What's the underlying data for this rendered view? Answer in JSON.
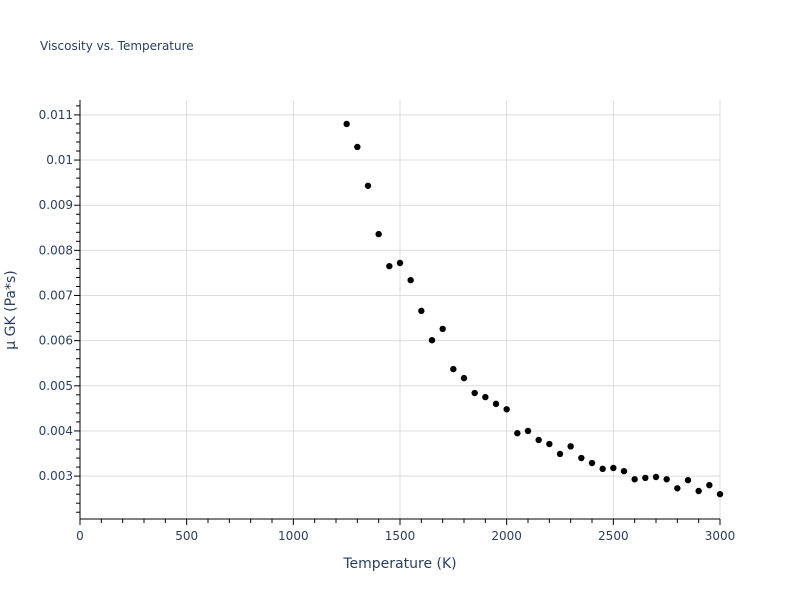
{
  "chart_data": {
    "type": "scatter",
    "title": "Viscosity vs. Temperature",
    "xlabel": "Temperature (K)",
    "ylabel": "μ GK (Pa*s)",
    "xlim": [
      0,
      3000
    ],
    "ylim": [
      0.00205,
      0.01133
    ],
    "xticks": [
      0,
      500,
      1000,
      1500,
      2000,
      2500,
      3000
    ],
    "xtick_labels": [
      "0",
      "500",
      "1000",
      "1500",
      "2000",
      "2500",
      "3000"
    ],
    "yticks": [
      0.003,
      0.004,
      0.005,
      0.006,
      0.007,
      0.008,
      0.009,
      0.01,
      0.011
    ],
    "ytick_labels": [
      "0.003",
      "0.004",
      "0.005",
      "0.006",
      "0.007",
      "0.008",
      "0.009",
      "0.01",
      "0.011"
    ],
    "grid": true,
    "marker_color": "#000000",
    "x": [
      1250,
      1300,
      1350,
      1400,
      1450,
      1500,
      1550,
      1600,
      1650,
      1700,
      1750,
      1800,
      1850,
      1900,
      1950,
      2000,
      2050,
      2100,
      2150,
      2200,
      2250,
      2300,
      2350,
      2400,
      2450,
      2500,
      2550,
      2600,
      2650,
      2700,
      2750,
      2800,
      2850,
      2900,
      2950,
      3000
    ],
    "y": [
      0.0108,
      0.01029,
      0.00943,
      0.00836,
      0.00765,
      0.00772,
      0.00734,
      0.00666,
      0.00601,
      0.00626,
      0.00537,
      0.00517,
      0.00484,
      0.00475,
      0.0046,
      0.00448,
      0.00395,
      0.004,
      0.0038,
      0.00371,
      0.00349,
      0.00366,
      0.0034,
      0.00329,
      0.00316,
      0.00318,
      0.00311,
      0.00293,
      0.00296,
      0.00298,
      0.00293,
      0.00273,
      0.00291,
      0.00267,
      0.0028,
      0.0026
    ]
  }
}
